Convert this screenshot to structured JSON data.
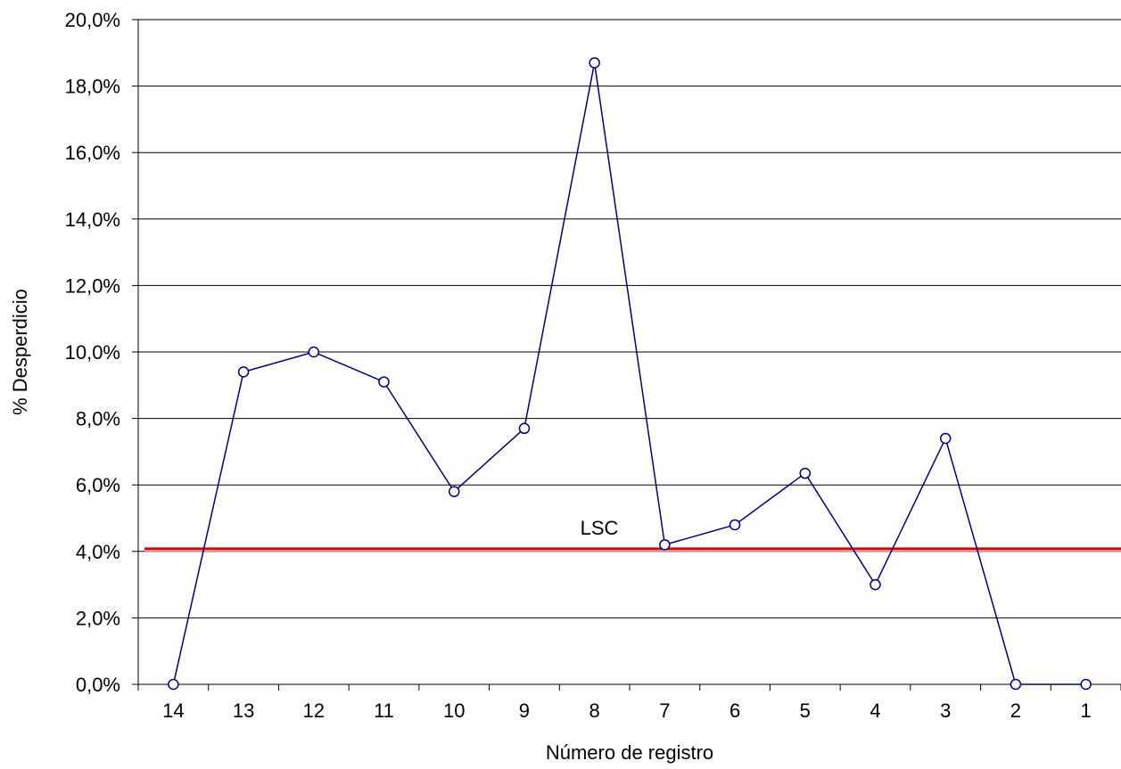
{
  "chart_data": {
    "type": "line",
    "title": "",
    "xlabel": "Número de registro",
    "ylabel": "% Desperdicio",
    "categories": [
      "14",
      "13",
      "12",
      "11",
      "10",
      "9",
      "8",
      "7",
      "6",
      "5",
      "4",
      "3",
      "2",
      "1"
    ],
    "series": [
      {
        "values": [
          0.0,
          9.4,
          10.0,
          9.1,
          5.8,
          7.7,
          18.7,
          4.2,
          4.8,
          6.35,
          3.0,
          7.4,
          0.0,
          0.0
        ],
        "color": "#000080",
        "marker": "open-circle"
      }
    ],
    "reference_line": {
      "label": "LSC",
      "value": 4.08,
      "color": "#e00000"
    },
    "ylim": [
      0,
      20
    ],
    "yticks": [
      0,
      2,
      4,
      6,
      8,
      10,
      12,
      14,
      16,
      18,
      20
    ],
    "ytick_labels": [
      "0,0%",
      "2,0%",
      "4,0%",
      "6,0%",
      "8,0%",
      "10,0%",
      "12,0%",
      "14,0%",
      "16,0%",
      "18,0%",
      "20,0%"
    ],
    "grid": true,
    "legend": "none"
  }
}
